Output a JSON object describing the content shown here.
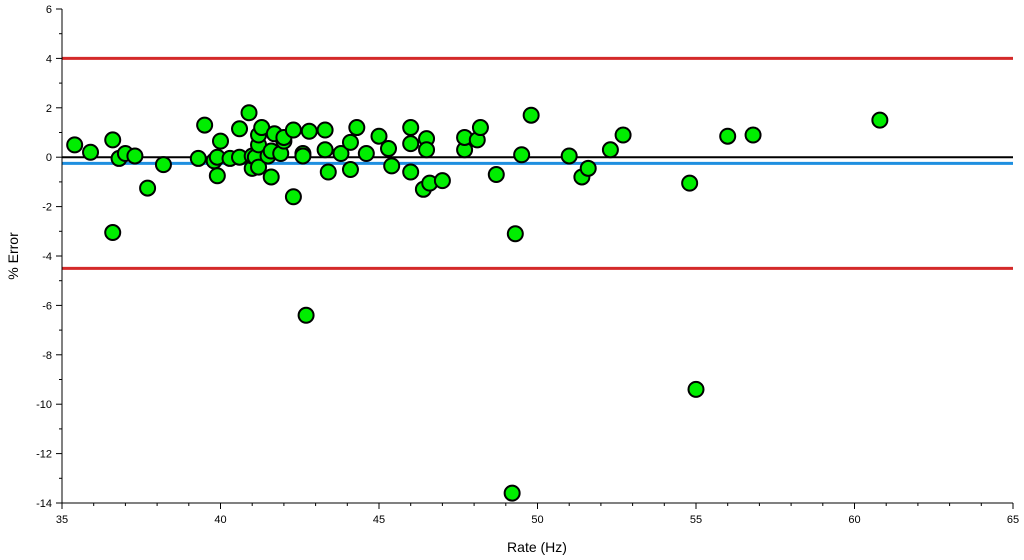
{
  "chart_data": {
    "type": "scatter",
    "title": "",
    "xlabel": "Rate (Hz)",
    "ylabel": "% Error",
    "xlim": [
      35,
      65
    ],
    "ylim": [
      -14,
      6
    ],
    "xticks": [
      35,
      40,
      45,
      50,
      55,
      60,
      65
    ],
    "yticks": [
      -14,
      -12,
      -10,
      -8,
      -6,
      -4,
      -2,
      0,
      2,
      4,
      6
    ],
    "grid": false,
    "reference_lines": [
      {
        "y": 4.0,
        "color": "#d42a2a"
      },
      {
        "y": -4.5,
        "color": "#d42a2a"
      },
      {
        "y": 0.0,
        "color": "#000000"
      },
      {
        "y": -0.25,
        "color": "#1e8fe0"
      }
    ],
    "marker_color": "#00ee00",
    "series": [
      {
        "points": [
          [
            35.4,
            0.5
          ],
          [
            35.9,
            0.2
          ],
          [
            36.6,
            0.7
          ],
          [
            36.6,
            -3.05
          ],
          [
            36.8,
            -0.05
          ],
          [
            37.0,
            0.15
          ],
          [
            37.3,
            0.05
          ],
          [
            37.7,
            -1.25
          ],
          [
            38.2,
            -0.3
          ],
          [
            39.3,
            -0.05
          ],
          [
            39.5,
            1.3
          ],
          [
            39.8,
            -0.15
          ],
          [
            39.9,
            -0.75
          ],
          [
            39.9,
            0.0
          ],
          [
            40.0,
            0.65
          ],
          [
            40.3,
            -0.05
          ],
          [
            40.6,
            0.0
          ],
          [
            40.6,
            1.15
          ],
          [
            40.9,
            1.8
          ],
          [
            41.0,
            -0.45
          ],
          [
            41.0,
            0.05
          ],
          [
            41.1,
            0.0
          ],
          [
            41.2,
            -0.4
          ],
          [
            41.2,
            0.5
          ],
          [
            41.2,
            0.9
          ],
          [
            41.3,
            1.2
          ],
          [
            41.5,
            0.05
          ],
          [
            41.6,
            0.25
          ],
          [
            41.6,
            -0.8
          ],
          [
            41.7,
            0.95
          ],
          [
            41.9,
            0.15
          ],
          [
            42.0,
            0.65
          ],
          [
            42.0,
            0.8
          ],
          [
            42.3,
            -1.6
          ],
          [
            42.3,
            1.1
          ],
          [
            42.6,
            0.15
          ],
          [
            42.6,
            0.05
          ],
          [
            42.7,
            -6.4
          ],
          [
            42.8,
            1.05
          ],
          [
            43.3,
            0.3
          ],
          [
            43.3,
            1.1
          ],
          [
            43.4,
            -0.6
          ],
          [
            43.8,
            0.15
          ],
          [
            44.1,
            -0.5
          ],
          [
            44.1,
            0.6
          ],
          [
            44.3,
            1.2
          ],
          [
            44.6,
            0.15
          ],
          [
            45.0,
            0.85
          ],
          [
            45.3,
            0.35
          ],
          [
            45.4,
            -0.35
          ],
          [
            46.0,
            1.2
          ],
          [
            46.0,
            0.55
          ],
          [
            46.0,
            -0.6
          ],
          [
            46.4,
            -1.3
          ],
          [
            46.5,
            0.75
          ],
          [
            46.5,
            0.3
          ],
          [
            46.6,
            -1.05
          ],
          [
            47.0,
            -0.95
          ],
          [
            47.7,
            0.3
          ],
          [
            47.7,
            0.8
          ],
          [
            48.1,
            0.7
          ],
          [
            48.2,
            1.2
          ],
          [
            48.7,
            -0.7
          ],
          [
            49.2,
            -13.6
          ],
          [
            49.3,
            -3.1
          ],
          [
            49.5,
            0.1
          ],
          [
            49.8,
            1.7
          ],
          [
            51.0,
            0.05
          ],
          [
            51.4,
            -0.8
          ],
          [
            51.6,
            -0.45
          ],
          [
            52.3,
            0.3
          ],
          [
            52.7,
            0.9
          ],
          [
            54.8,
            -1.05
          ],
          [
            55.0,
            -9.4
          ],
          [
            56.0,
            0.85
          ],
          [
            56.8,
            0.9
          ],
          [
            60.8,
            1.5
          ]
        ]
      }
    ]
  }
}
